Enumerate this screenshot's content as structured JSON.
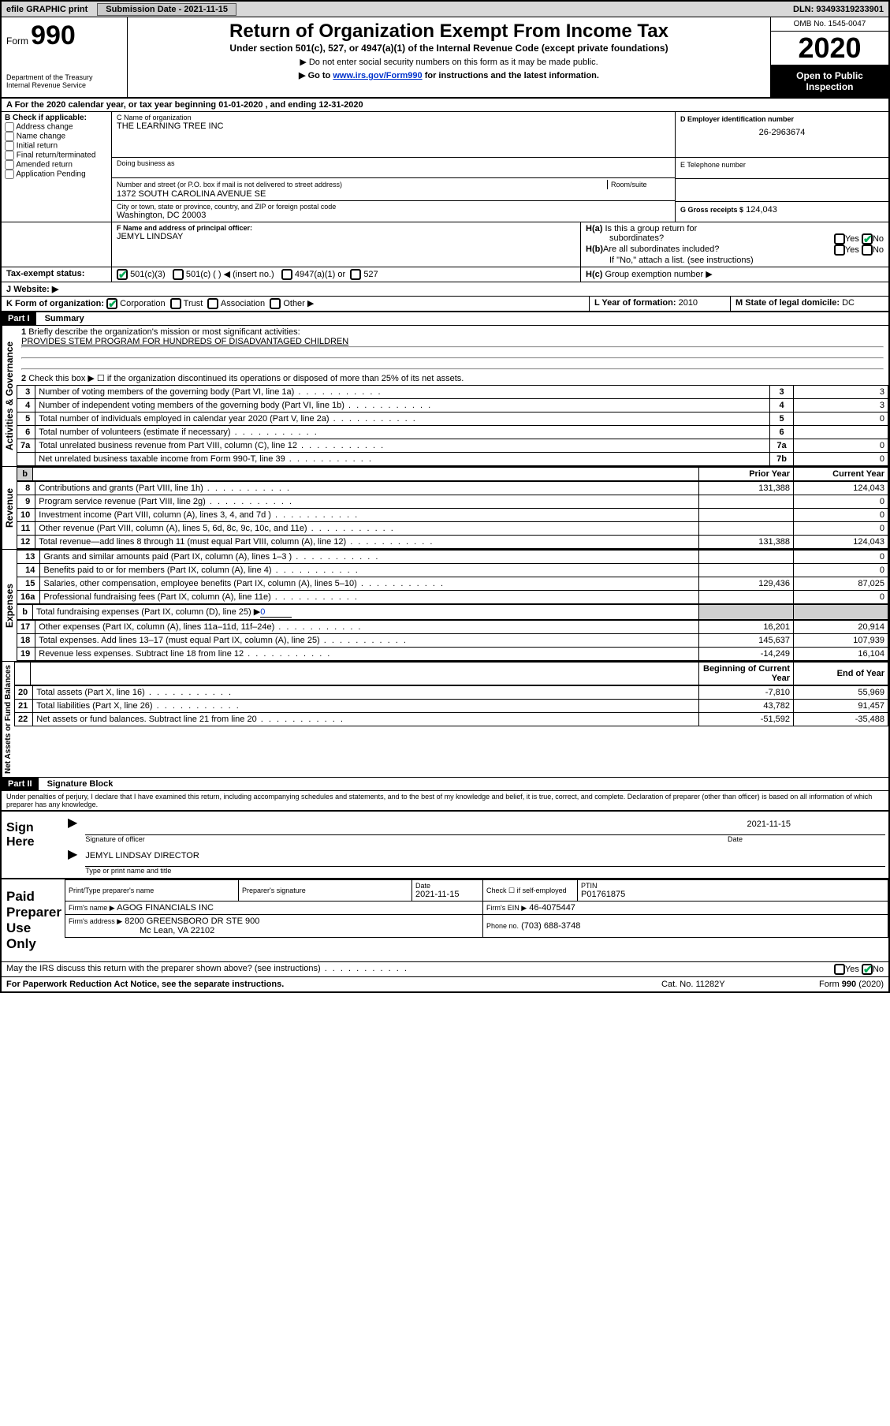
{
  "topbar": {
    "efile": "efile GRAPHIC print",
    "sub_label": "Submission Date - 2021-11-15",
    "dln": "DLN: 93493319233901"
  },
  "header": {
    "form_label": "Form",
    "form_no": "990",
    "dept1": "Department of the Treasury",
    "dept2": "Internal Revenue Service",
    "title": "Return of Organization Exempt From Income Tax",
    "sub": "Under section 501(c), 527, or 4947(a)(1) of the Internal Revenue Code (except private foundations)",
    "note1": "▶ Do not enter social security numbers on this form as it may be made public.",
    "note2_pre": "▶ Go to ",
    "note2_link": "www.irs.gov/Form990",
    "note2_post": " for instructions and the latest information.",
    "omb": "OMB No. 1545-0047",
    "year": "2020",
    "open": "Open to Public Inspection"
  },
  "period": {
    "text": "For the 2020 calendar year, or tax year beginning 01-01-2020   , and ending 12-31-2020",
    "prefix": "A"
  },
  "B": {
    "title": "B Check if applicable:",
    "addr": "Address change",
    "name": "Name change",
    "init": "Initial return",
    "final": "Final return/terminated",
    "amend": "Amended return",
    "app": "Application Pending"
  },
  "C": {
    "name_label": "C Name of organization",
    "name": "THE LEARNING TREE INC",
    "dba_label": "Doing business as",
    "dba": "",
    "street_label": "Number and street (or P.O. box if mail is not delivered to street address)",
    "room_label": "Room/suite",
    "street": "1372 SOUTH CAROLINA AVENUE SE",
    "city_label": "City or town, state or province, country, and ZIP or foreign postal code",
    "city": "Washington, DC  20003"
  },
  "D": {
    "label": "D Employer identification number",
    "ein": "26-2963674"
  },
  "E": {
    "label": "E Telephone number",
    "phone": ""
  },
  "G": {
    "label": "G Gross receipts $",
    "amount": "124,043"
  },
  "F": {
    "label": "F  Name and address of principal officer:",
    "name": "JEMYL LINDSAY"
  },
  "H": {
    "a": "Is this a group return for",
    "a2": "subordinates?",
    "b": "Are all subordinates included?",
    "b_note": "If \"No,\" attach a list. (see instructions)",
    "c": "Group exemption number ▶"
  },
  "I": {
    "label": "Tax-exempt status:",
    "s1": "501(c)(3)",
    "s2": "501(c) (  ) ◀ (insert no.)",
    "s3": "4947(a)(1) or",
    "s4": "527"
  },
  "J": {
    "label": "Website: ▶"
  },
  "K": {
    "label": "K Form of organization:",
    "corp": "Corporation",
    "trust": "Trust",
    "assoc": "Association",
    "other": "Other ▶"
  },
  "L": {
    "label": "L Year of formation:",
    "val": "2010"
  },
  "M": {
    "label": "M State of legal domicile:",
    "val": "DC"
  },
  "part1": {
    "hdr": "Part I",
    "title": "Summary",
    "l1_label": "Briefly describe the organization's mission or most significant activities:",
    "l1": "PROVIDES STEM PROGRAM FOR HUNDREDS OF DISADVANTAGED CHILDREN",
    "l2": "Check this box ▶ ☐  if the organization discontinued its operations or disposed of more than 25% of its net assets.",
    "vert1": "Activities & Governance",
    "vert2": "Revenue",
    "vert3": "Expenses",
    "vert4": "Net Assets or Fund Balances",
    "rows_ag": [
      {
        "n": "3",
        "t": "Number of voting members of the governing body (Part VI, line 1a)",
        "ln": "3",
        "v": "3"
      },
      {
        "n": "4",
        "t": "Number of independent voting members of the governing body (Part VI, line 1b)",
        "ln": "4",
        "v": "3"
      },
      {
        "n": "5",
        "t": "Total number of individuals employed in calendar year 2020 (Part V, line 2a)",
        "ln": "5",
        "v": "0"
      },
      {
        "n": "6",
        "t": "Total number of volunteers (estimate if necessary)",
        "ln": "6",
        "v": ""
      },
      {
        "n": "7a",
        "t": "Total unrelated business revenue from Part VIII, column (C), line 12",
        "ln": "7a",
        "v": "0"
      },
      {
        "n": "",
        "t": "Net unrelated business taxable income from Form 990-T, line 39",
        "ln": "7b",
        "v": "0"
      }
    ],
    "col_prior": "Prior Year",
    "col_curr": "Current Year",
    "rows_rev": [
      {
        "n": "8",
        "t": "Contributions and grants (Part VIII, line 1h)",
        "p": "131,388",
        "c": "124,043"
      },
      {
        "n": "9",
        "t": "Program service revenue (Part VIII, line 2g)",
        "p": "",
        "c": "0"
      },
      {
        "n": "10",
        "t": "Investment income (Part VIII, column (A), lines 3, 4, and 7d )",
        "p": "",
        "c": "0"
      },
      {
        "n": "11",
        "t": "Other revenue (Part VIII, column (A), lines 5, 6d, 8c, 9c, 10c, and 11e)",
        "p": "",
        "c": "0"
      },
      {
        "n": "12",
        "t": "Total revenue—add lines 8 through 11 (must equal Part VIII, column (A), line 12)",
        "p": "131,388",
        "c": "124,043"
      }
    ],
    "rows_exp": [
      {
        "n": "13",
        "t": "Grants and similar amounts paid (Part IX, column (A), lines 1–3 )",
        "p": "",
        "c": "0"
      },
      {
        "n": "14",
        "t": "Benefits paid to or for members (Part IX, column (A), line 4)",
        "p": "",
        "c": "0"
      },
      {
        "n": "15",
        "t": "Salaries, other compensation, employee benefits (Part IX, column (A), lines 5–10)",
        "p": "129,436",
        "c": "87,025"
      },
      {
        "n": "16a",
        "t": "Professional fundraising fees (Part IX, column (A), line 11e)",
        "p": "",
        "c": "0"
      }
    ],
    "l16b_pre": "Total fundraising expenses (Part IX, column (D), line 25) ▶",
    "l16b_val": "0",
    "rows_exp2": [
      {
        "n": "17",
        "t": "Other expenses (Part IX, column (A), lines 11a–11d, 11f–24e)",
        "p": "16,201",
        "c": "20,914"
      },
      {
        "n": "18",
        "t": "Total expenses. Add lines 13–17 (must equal Part IX, column (A), line 25)",
        "p": "145,637",
        "c": "107,939"
      },
      {
        "n": "19",
        "t": "Revenue less expenses. Subtract line 18 from line 12",
        "p": "-14,249",
        "c": "16,104"
      }
    ],
    "col_beg": "Beginning of Current Year",
    "col_end": "End of Year",
    "rows_net": [
      {
        "n": "20",
        "t": "Total assets (Part X, line 16)",
        "p": "-7,810",
        "c": "55,969"
      },
      {
        "n": "21",
        "t": "Total liabilities (Part X, line 26)",
        "p": "43,782",
        "c": "91,457"
      },
      {
        "n": "22",
        "t": "Net assets or fund balances. Subtract line 21 from line 20",
        "p": "-51,592",
        "c": "-35,488"
      }
    ]
  },
  "part2": {
    "hdr": "Part II",
    "title": "Signature Block",
    "decl": "Under penalties of perjury, I declare that I have examined this return, including accompanying schedules and statements, and to the best of my knowledge and belief, it is true, correct, and complete. Declaration of preparer (other than officer) is based on all information of which preparer has any knowledge.",
    "sign_here": "Sign Here",
    "sig_of": "Signature of officer",
    "date_label": "Date",
    "sig_date": "2021-11-15",
    "officer": "JEMYL LINDSAY  DIRECTOR",
    "type_label": "Type or print name and title",
    "paid": "Paid Preparer Use Only",
    "prep_name_label": "Print/Type preparer's name",
    "prep_sig_label": "Preparer's signature",
    "prep_date_label": "Date",
    "prep_date": "2021-11-15",
    "check_self": "Check ☐ if self-employed",
    "ptin_label": "PTIN",
    "ptin": "P01761875",
    "firm_name_label": "Firm's name    ▶",
    "firm_name": "AGOG FINANCIALS INC",
    "firm_ein_label": "Firm's EIN ▶",
    "firm_ein": "46-4075447",
    "firm_addr_label": "Firm's address ▶",
    "firm_addr1": "8200 GREENSBORO DR STE 900",
    "firm_addr2": "Mc Lean, VA  22102",
    "firm_phone_label": "Phone no.",
    "firm_phone": "(703) 688-3748",
    "discuss": "May the IRS discuss this return with the preparer shown above? (see instructions)"
  },
  "yesno": {
    "yes": "Yes",
    "no": "No"
  },
  "footer": {
    "left": "For Paperwork Reduction Act Notice, see the separate instructions.",
    "mid": "Cat. No. 11282Y",
    "right": "Form 990 (2020)"
  },
  "colors": {
    "link": "#0033cc",
    "shade": "#d0d0d0",
    "topbar": "#d8d8d8"
  }
}
